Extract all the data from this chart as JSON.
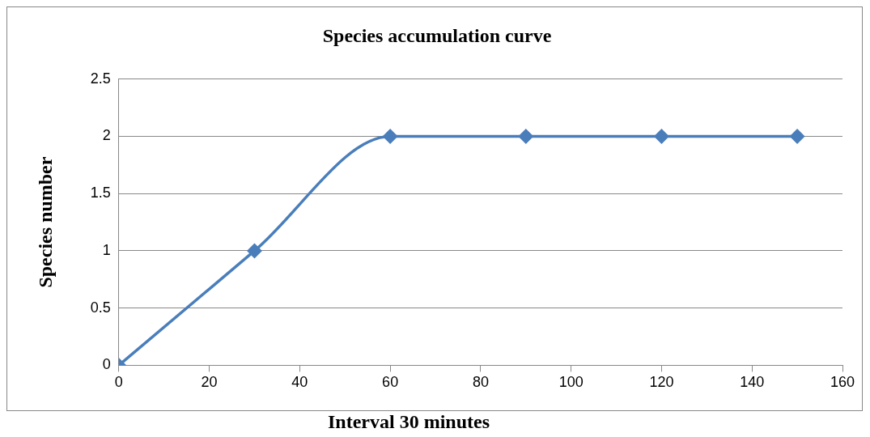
{
  "chart_data": {
    "type": "line",
    "title": "Species accumulation curve",
    "xlabel": "Interval 30 minutes",
    "ylabel": "Species number",
    "x": [
      0,
      30,
      60,
      90,
      120,
      150
    ],
    "series": [
      {
        "color": "#4a7ebb",
        "values": [
          0,
          1,
          2,
          2,
          2,
          2
        ]
      }
    ],
    "xlim": [
      0,
      160
    ],
    "xticks": [
      0,
      20,
      40,
      60,
      80,
      100,
      120,
      140,
      160
    ],
    "ylim": [
      0,
      2.5
    ],
    "yticks": [
      0,
      0.5,
      1,
      1.5,
      2,
      2.5
    ],
    "grid": "y",
    "legend": false,
    "marker": "diamond",
    "line_style": "solid"
  }
}
